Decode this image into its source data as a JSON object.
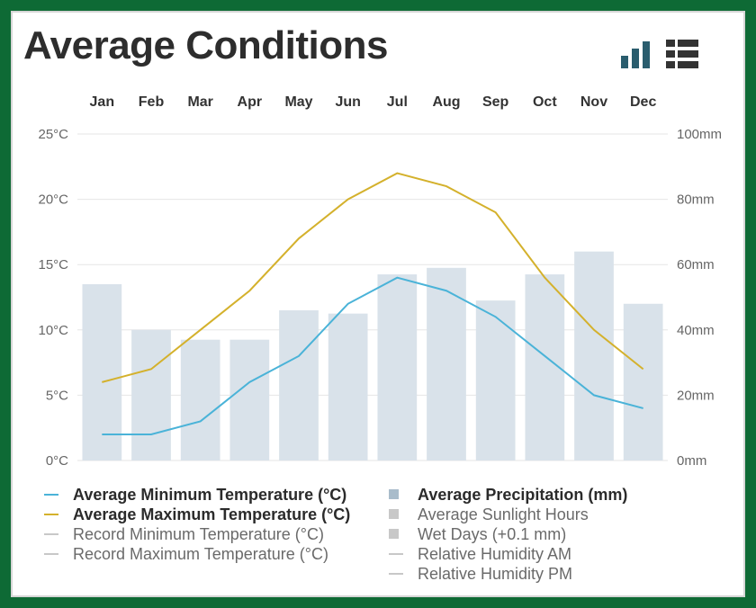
{
  "header": {
    "title": "Average Conditions",
    "chart_icon": "bar-chart-icon",
    "table_icon": "table-grid-icon"
  },
  "colors": {
    "min_temp": "#4ab3d8",
    "max_temp": "#d4b12c",
    "precip_bar": "#d9e2ea",
    "precip_swatch": "#a9bccb",
    "disabled": "#c8c8c8",
    "axis_text": "#666666",
    "month_text": "#333333"
  },
  "chart_data": {
    "type": "bar",
    "categories": [
      "Jan",
      "Feb",
      "Mar",
      "Apr",
      "May",
      "Jun",
      "Jul",
      "Aug",
      "Sep",
      "Oct",
      "Nov",
      "Dec"
    ],
    "left_axis": {
      "ylim": [
        0,
        25
      ],
      "ticks": [
        "0°C",
        "5°C",
        "10°C",
        "15°C",
        "20°C",
        "25°C"
      ]
    },
    "right_axis": {
      "ylim": [
        0,
        100
      ],
      "ticks": [
        "0mm",
        "20mm",
        "40mm",
        "60mm",
        "80mm",
        "100mm"
      ]
    },
    "grid": true,
    "series": [
      {
        "name": "Average Minimum Temperature (°C)",
        "kind": "line",
        "axis": "left",
        "values": [
          2,
          2,
          3,
          6,
          8,
          12,
          14,
          13,
          11,
          8,
          5,
          4
        ]
      },
      {
        "name": "Average Maximum Temperature (°C)",
        "kind": "line",
        "axis": "left",
        "values": [
          6,
          7,
          10,
          13,
          17,
          20,
          22,
          21,
          19,
          14,
          10,
          7
        ]
      },
      {
        "name": "Average Precipitation (mm)",
        "kind": "bar",
        "axis": "right",
        "values": [
          54,
          40,
          37,
          37,
          46,
          45,
          57,
          59,
          49,
          57,
          64,
          48
        ]
      }
    ],
    "legend_position": "bottom"
  },
  "legend": {
    "left": [
      {
        "label": "Average Minimum Temperature (°C)",
        "active": true
      },
      {
        "label": "Average Maximum Temperature (°C)",
        "active": true
      },
      {
        "label": "Record Minimum Temperature (°C)",
        "active": false
      },
      {
        "label": "Record Maximum Temperature (°C)",
        "active": false
      }
    ],
    "right": [
      {
        "label": "Average Precipitation (mm)",
        "active": true
      },
      {
        "label": "Average Sunlight Hours",
        "active": false
      },
      {
        "label": "Wet Days (+0.1 mm)",
        "active": false
      },
      {
        "label": "Relative Humidity AM",
        "active": false
      },
      {
        "label": "Relative Humidity PM",
        "active": false
      }
    ]
  }
}
